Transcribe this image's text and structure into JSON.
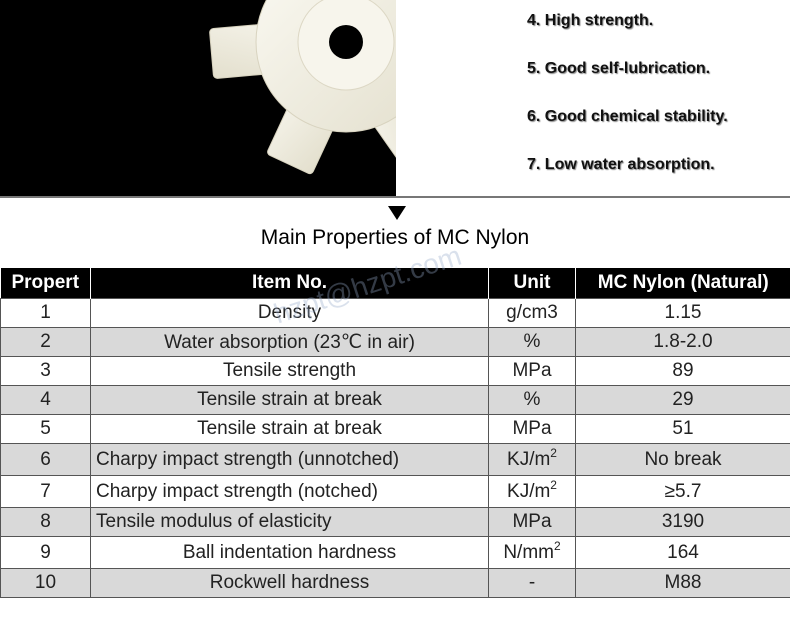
{
  "features": [
    "4. High strength.",
    "5. Good self-lubrication.",
    "6. Good chemical stability.",
    "7. Low water absorption."
  ],
  "title": "Main Properties of MC Nylon",
  "table": {
    "headers": [
      "Propert",
      "Item No.",
      "Unit",
      "MC Nylon (Natural)"
    ],
    "rows": [
      {
        "no": "1",
        "item": "Density",
        "unit": "g/cm3",
        "unit_sup": "",
        "value": "1.15"
      },
      {
        "no": "2",
        "item": "Water absorption (23℃ in air)",
        "unit": "%",
        "unit_sup": "",
        "value": "1.8-2.0"
      },
      {
        "no": "3",
        "item": "Tensile strength",
        "unit": "MPa",
        "unit_sup": "",
        "value": "89"
      },
      {
        "no": "4",
        "item": "Tensile strain at break",
        "unit": "%",
        "unit_sup": "",
        "value": "29"
      },
      {
        "no": "5",
        "item": "Tensile strain at break",
        "unit": "MPa",
        "unit_sup": "",
        "value": "51"
      },
      {
        "no": "6",
        "item": "Charpy impact strength (unnotched)",
        "unit": "KJ/m",
        "unit_sup": "2",
        "value": "No break"
      },
      {
        "no": "7",
        "item": "Charpy impact strength (notched)",
        "unit": "KJ/m",
        "unit_sup": "2",
        "value": "≥5.7"
      },
      {
        "no": "8",
        "item": "Tensile modulus of elasticity",
        "unit": "MPa",
        "unit_sup": "",
        "value": "3190"
      },
      {
        "no": "9",
        "item": "Ball indentation hardness",
        "unit": "N/mm",
        "unit_sup": "2",
        "value": "164"
      },
      {
        "no": "10",
        "item": "Rockwell hardness",
        "unit": "-",
        "unit_sup": "",
        "value": "M88"
      }
    ]
  },
  "watermark": "hzpt@hzpt.com",
  "colors": {
    "header_bg": "#000000",
    "row_alt": "#d9d9d9",
    "gear": "#f4f1e6"
  }
}
